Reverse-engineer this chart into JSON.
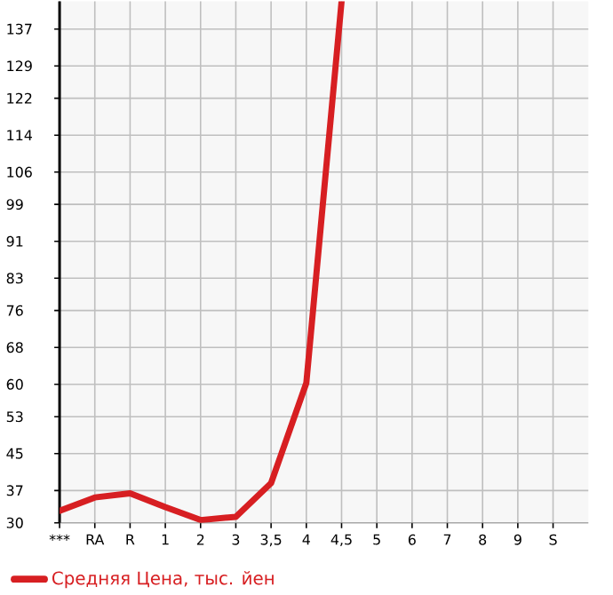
{
  "chart_data": {
    "type": "line",
    "categories": [
      "***",
      "RA",
      "R",
      "1",
      "2",
      "3",
      "3,5",
      "4",
      "4,5",
      "5",
      "6",
      "7",
      "8",
      "9",
      "S"
    ],
    "series": [
      {
        "name": "Средняя Цена, тыс. йен",
        "color": "#d71f22",
        "values": [
          32.6,
          35.5,
          36.4,
          33.4,
          30.6,
          31.3,
          38.6,
          60.3,
          143,
          null,
          null,
          null,
          null,
          null,
          null
        ]
      }
    ],
    "ylim": [
      30,
      143
    ],
    "yticks": [
      30,
      37,
      45,
      53,
      60,
      68,
      76,
      83,
      91,
      99,
      106,
      114,
      122,
      129,
      137
    ],
    "grid": true,
    "legend": "bottom"
  }
}
